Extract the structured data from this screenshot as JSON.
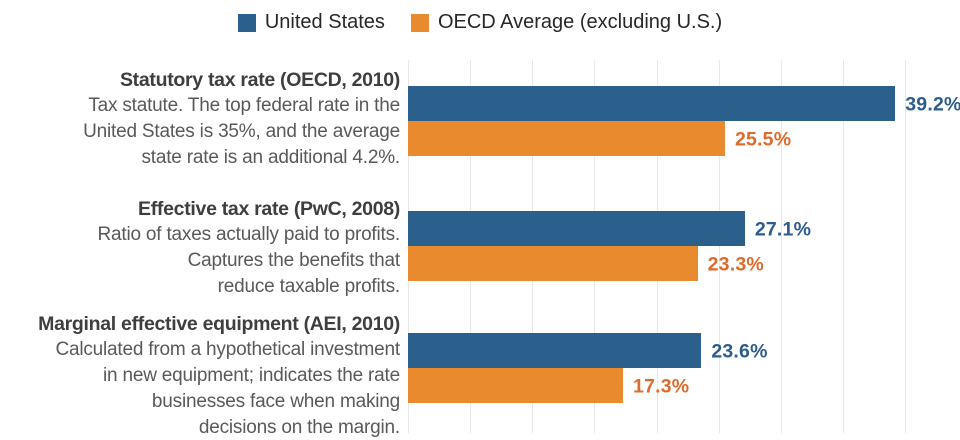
{
  "legend": {
    "items": [
      {
        "label": "United States",
        "color": "#2B5F8C"
      },
      {
        "label": "OECD Average (excluding U.S.)",
        "color": "#EA8A2E"
      }
    ]
  },
  "chart_data": {
    "type": "bar",
    "orientation": "horizontal",
    "title": "",
    "categories": [
      {
        "title": "Statutory tax rate (OECD, 2010)",
        "description_lines": [
          "Tax statute. The top federal rate in the",
          "United States is 35%, and the average",
          "state rate is an additional 4.2%."
        ]
      },
      {
        "title": "Effective tax rate (PwC, 2008)",
        "description_lines": [
          "Ratio of taxes actually paid to profits.",
          "Captures the benefits that",
          "reduce taxable profits."
        ]
      },
      {
        "title": "Marginal effective equipment (AEI, 2010)",
        "description_lines": [
          "Calculated from a hypothetical investment",
          "in new equipment; indicates the rate",
          "businesses face when making",
          "decisions on the margin."
        ]
      }
    ],
    "series": [
      {
        "name": "United States",
        "color": "#2B5F8C",
        "label_color": "#2B5C8C",
        "values": [
          39.2,
          27.1,
          23.6
        ],
        "value_labels": [
          "39.2%",
          "27.1%",
          "23.6%"
        ]
      },
      {
        "name": "OECD Average (excluding U.S.)",
        "color": "#EA8A2E",
        "label_color": "#DE6A2B",
        "values": [
          25.5,
          23.3,
          17.3
        ],
        "value_labels": [
          "25.5%",
          "23.3%",
          "17.3%"
        ]
      }
    ],
    "value_suffix": "%",
    "xlim": [
      0,
      40
    ],
    "gridline_step": 5,
    "grid": true,
    "legend_position": "top"
  }
}
